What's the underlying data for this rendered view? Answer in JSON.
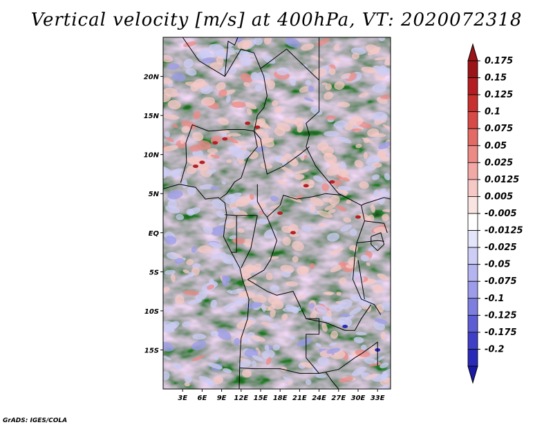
{
  "title": "Vertical velocity [m/s] at 400hPa, VT: 2020072318",
  "credit": "GrADS: IGES/COLA",
  "map": {
    "projection": "latlon",
    "lon_range": [
      0,
      35
    ],
    "lat_range": [
      -20,
      25
    ],
    "lat_ticks": [
      {
        "value": 20,
        "label": "20N"
      },
      {
        "value": 15,
        "label": "15N"
      },
      {
        "value": 10,
        "label": "10N"
      },
      {
        "value": 5,
        "label": "5N"
      },
      {
        "value": 0,
        "label": "EQ"
      },
      {
        "value": -5,
        "label": "5S"
      },
      {
        "value": -10,
        "label": "10S"
      },
      {
        "value": -15,
        "label": "15S"
      }
    ],
    "lon_ticks": [
      {
        "value": 3,
        "label": "3E"
      },
      {
        "value": 6,
        "label": "6E"
      },
      {
        "value": 9,
        "label": "9E"
      },
      {
        "value": 12,
        "label": "12E"
      },
      {
        "value": 15,
        "label": "15E"
      },
      {
        "value": 18,
        "label": "18E"
      },
      {
        "value": 21,
        "label": "21E"
      },
      {
        "value": 24,
        "label": "24E"
      },
      {
        "value": 27,
        "label": "27E"
      },
      {
        "value": 30,
        "label": "30E"
      },
      {
        "value": 33,
        "label": "33E"
      }
    ],
    "field": "vertical velocity at 400hPa (shaded, noisy convective field)",
    "colors": {
      "neutral": "#ffffff",
      "positive_light": "#f6c9c6",
      "positive_mid": "#ec8a86",
      "positive_strong": "#b42025",
      "negative_light": "#cdcdf6",
      "negative_mid": "#9c9cea",
      "negative_strong": "#2a2ab8"
    }
  },
  "colorbar": {
    "levels": [
      {
        "label": "0.175",
        "color": "#9a1418"
      },
      {
        "label": "0.15",
        "color": "#b41e22"
      },
      {
        "label": "0.125",
        "color": "#c8302f"
      },
      {
        "label": "0.1",
        "color": "#d84a47"
      },
      {
        "label": "0.075",
        "color": "#e46a66"
      },
      {
        "label": "0.05",
        "color": "#ec8a86"
      },
      {
        "label": "0.025",
        "color": "#f2a9a6"
      },
      {
        "label": "0.0125",
        "color": "#f6c9c6"
      },
      {
        "label": "0.005",
        "color": "#fae4e2"
      },
      {
        "label": "-0.005",
        "color": "#ffffff"
      },
      {
        "label": "-0.0125",
        "color": "#e4e4fa"
      },
      {
        "label": "-0.025",
        "color": "#cdcdf6"
      },
      {
        "label": "-0.05",
        "color": "#b4b4f0"
      },
      {
        "label": "-0.075",
        "color": "#9c9cea"
      },
      {
        "label": "-0.1",
        "color": "#7e7ee0"
      },
      {
        "label": "-0.125",
        "color": "#5e5ed4"
      },
      {
        "label": "-0.175",
        "color": "#4040c6"
      },
      {
        "label": "-0.2",
        "color": "#2a2ab8"
      }
    ],
    "bottom_color": "#1a1aa6",
    "top_color": "#9a1418"
  }
}
